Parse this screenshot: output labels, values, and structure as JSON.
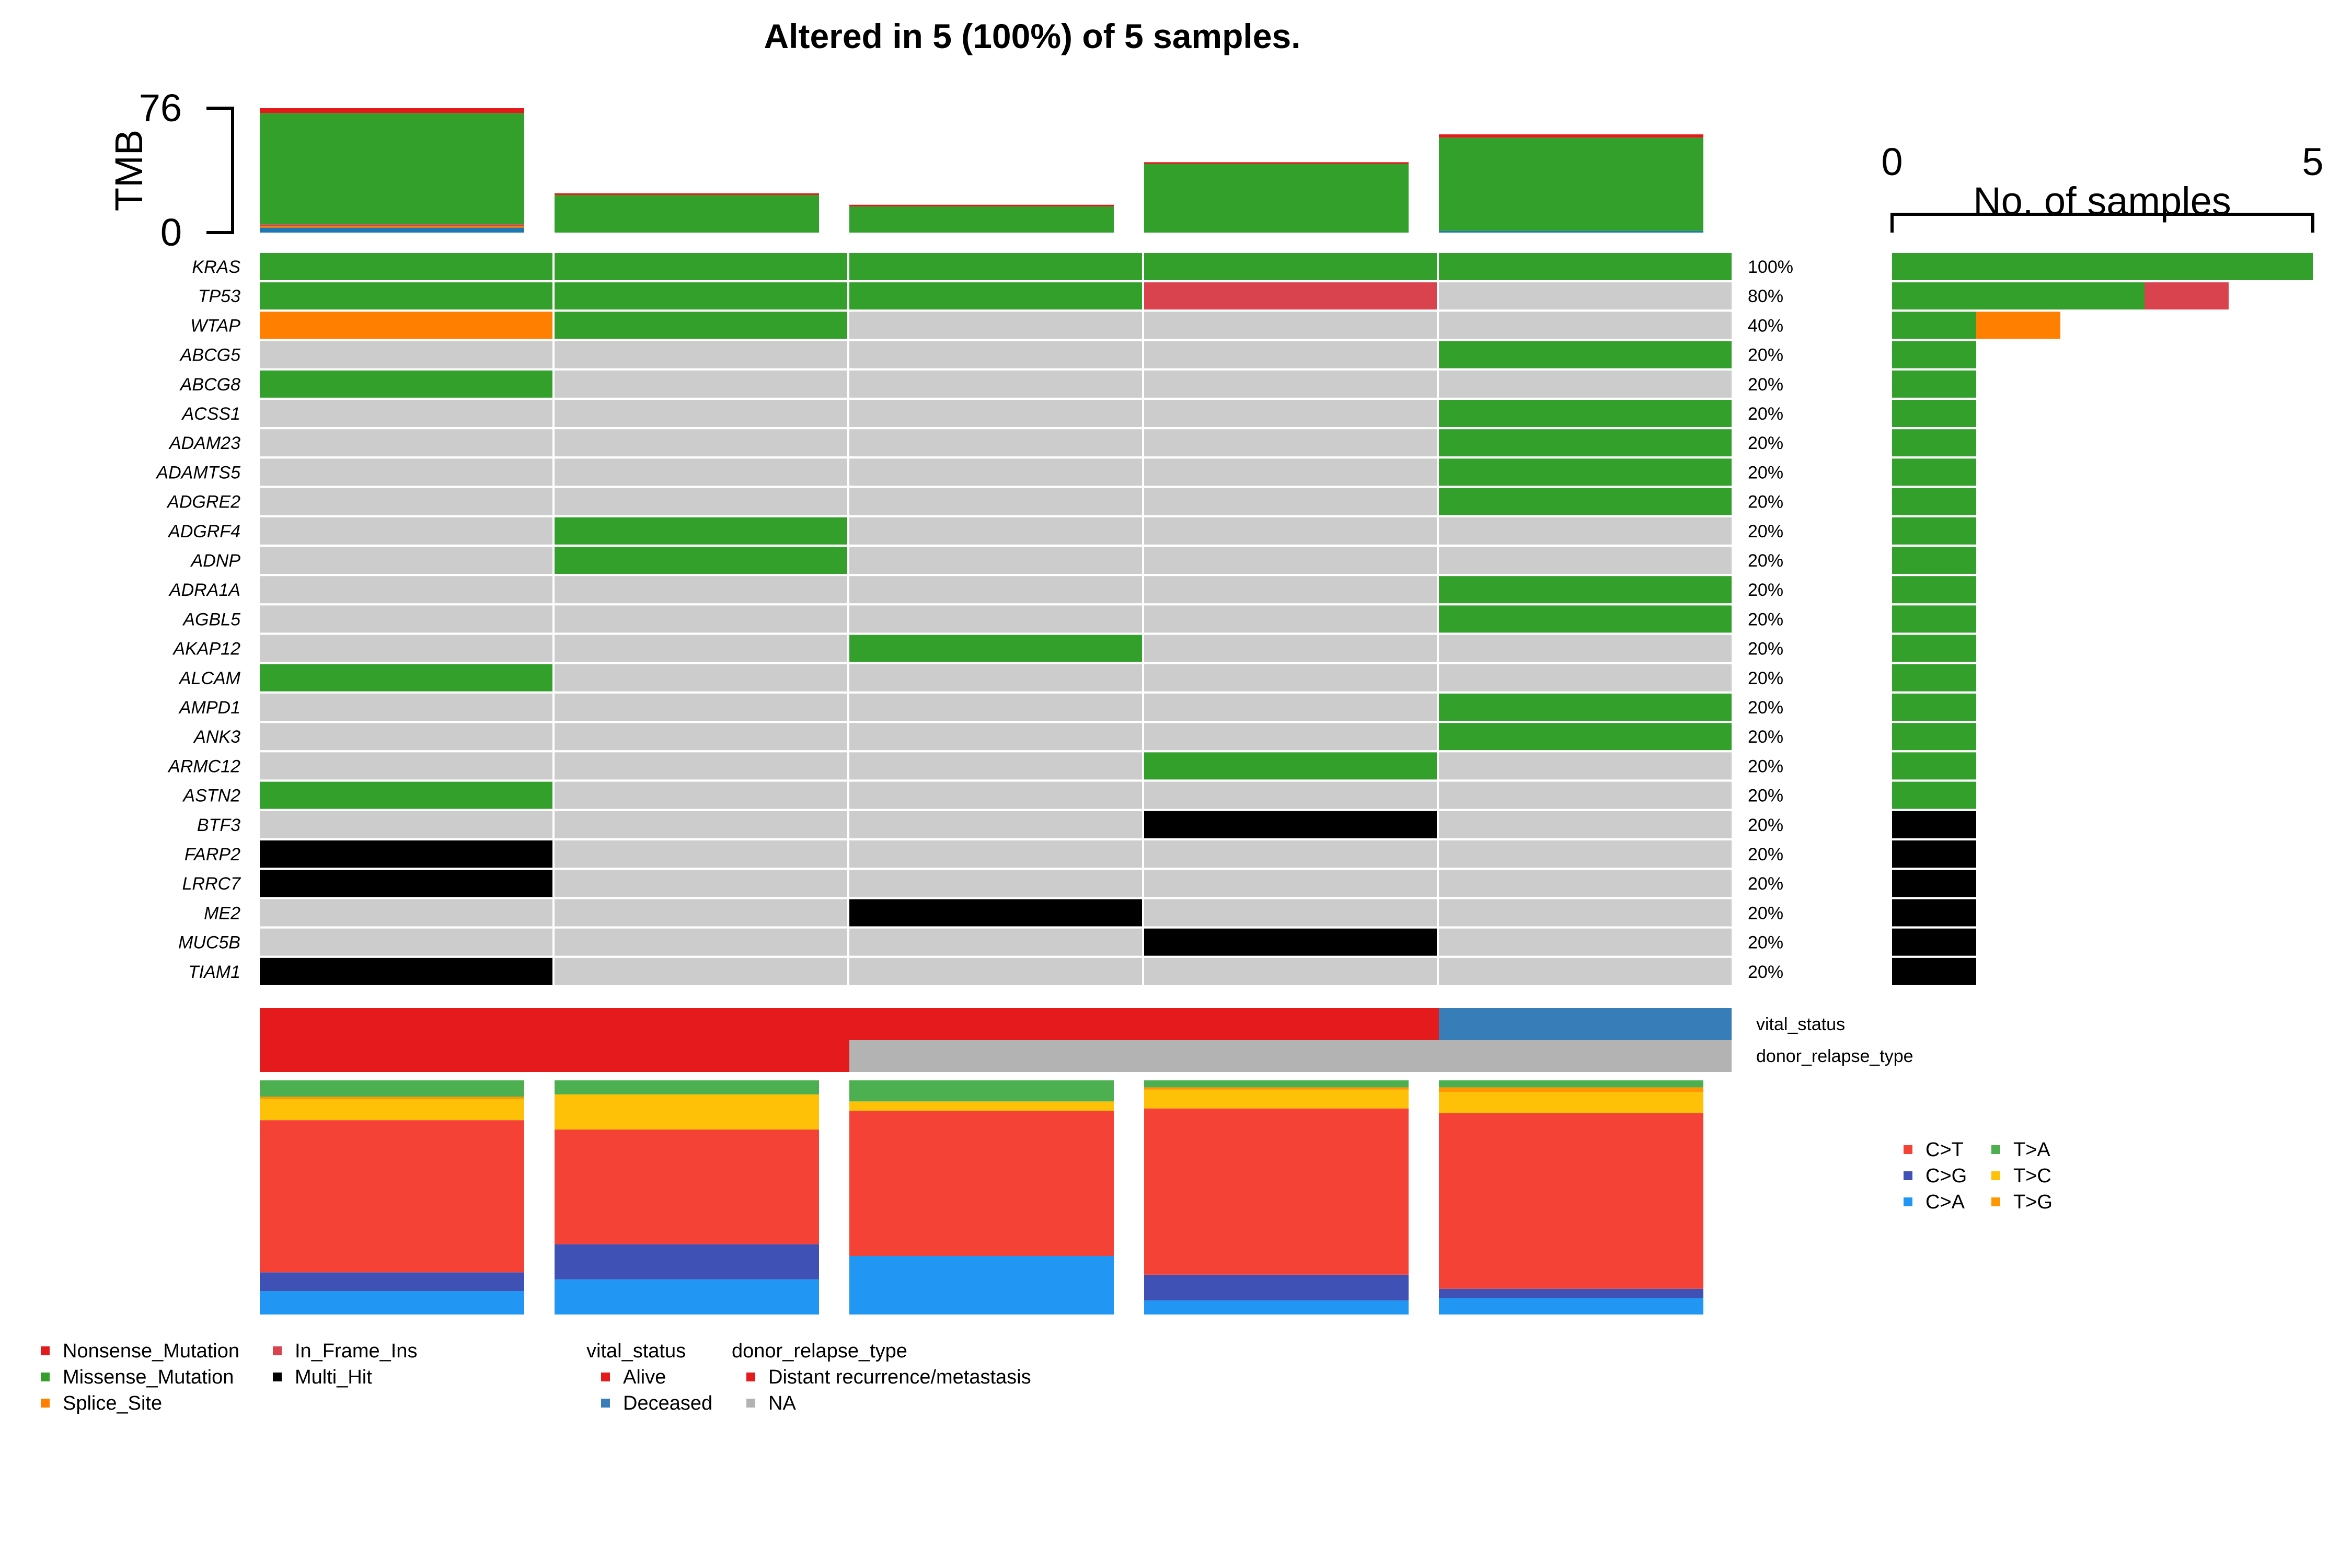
{
  "chart_data": {
    "type": "oncoplot",
    "title": "Altered in 5 (100%) of 5 samples.",
    "tmb_axis": {
      "label": "TMB",
      "range": [
        0,
        76
      ],
      "ticks": [
        "0",
        "76"
      ]
    },
    "samples_axis": {
      "label": "No. of samples",
      "range": [
        0,
        5
      ],
      "ticks": [
        "0",
        "5"
      ]
    },
    "n_samples": 5,
    "variant_colors": {
      "Nonsense_Mutation": "#E31A1C",
      "Missense_Mutation": "#33A02C",
      "Splice_Site": "#FF7F00",
      "In_Frame_Ins": "#D9434E",
      "Multi_Hit": "#000000",
      "None": "#CCCCCC"
    },
    "tmb": [
      {
        "sample": 1,
        "total": 76,
        "parts": {
          "Missense_Mutation": 68,
          "Nonsense_Mutation": 3,
          "Splice_Site": 1,
          "In_Frame_Ins": 1,
          "Other": 3
        }
      },
      {
        "sample": 2,
        "total": 24,
        "parts": {
          "Missense_Mutation": 23,
          "Nonsense_Mutation": 1
        }
      },
      {
        "sample": 3,
        "total": 17,
        "parts": {
          "Missense_Mutation": 16,
          "Nonsense_Mutation": 1
        }
      },
      {
        "sample": 4,
        "total": 43,
        "parts": {
          "Missense_Mutation": 42,
          "Nonsense_Mutation": 1
        }
      },
      {
        "sample": 5,
        "total": 60,
        "parts": {
          "Missense_Mutation": 57,
          "Nonsense_Mutation": 2,
          "Other": 1
        }
      }
    ],
    "genes": [
      {
        "name": "KRAS",
        "pct": "100%",
        "calls": [
          "Missense_Mutation",
          "Missense_Mutation",
          "Missense_Mutation",
          "Missense_Mutation",
          "Missense_Mutation"
        ],
        "counts": {
          "Missense_Mutation": 5
        }
      },
      {
        "name": "TP53",
        "pct": "80%",
        "calls": [
          "Missense_Mutation",
          "Missense_Mutation",
          "Missense_Mutation",
          "In_Frame_Ins",
          "None"
        ],
        "counts": {
          "Missense_Mutation": 3,
          "In_Frame_Ins": 1
        }
      },
      {
        "name": "WTAP",
        "pct": "40%",
        "calls": [
          "Splice_Site",
          "Missense_Mutation",
          "None",
          "None",
          "None"
        ],
        "counts": {
          "Missense_Mutation": 1,
          "Splice_Site": 1
        }
      },
      {
        "name": "ABCG5",
        "pct": "20%",
        "calls": [
          "None",
          "None",
          "None",
          "None",
          "Missense_Mutation"
        ],
        "counts": {
          "Missense_Mutation": 1
        }
      },
      {
        "name": "ABCG8",
        "pct": "20%",
        "calls": [
          "Missense_Mutation",
          "None",
          "None",
          "None",
          "None"
        ],
        "counts": {
          "Missense_Mutation": 1
        }
      },
      {
        "name": "ACSS1",
        "pct": "20%",
        "calls": [
          "None",
          "None",
          "None",
          "None",
          "Missense_Mutation"
        ],
        "counts": {
          "Missense_Mutation": 1
        }
      },
      {
        "name": "ADAM23",
        "pct": "20%",
        "calls": [
          "None",
          "None",
          "None",
          "None",
          "Missense_Mutation"
        ],
        "counts": {
          "Missense_Mutation": 1
        }
      },
      {
        "name": "ADAMTS5",
        "pct": "20%",
        "calls": [
          "None",
          "None",
          "None",
          "None",
          "Missense_Mutation"
        ],
        "counts": {
          "Missense_Mutation": 1
        }
      },
      {
        "name": "ADGRE2",
        "pct": "20%",
        "calls": [
          "None",
          "None",
          "None",
          "None",
          "Missense_Mutation"
        ],
        "counts": {
          "Missense_Mutation": 1
        }
      },
      {
        "name": "ADGRF4",
        "pct": "20%",
        "calls": [
          "None",
          "Missense_Mutation",
          "None",
          "None",
          "None"
        ],
        "counts": {
          "Missense_Mutation": 1
        }
      },
      {
        "name": "ADNP",
        "pct": "20%",
        "calls": [
          "None",
          "Missense_Mutation",
          "None",
          "None",
          "None"
        ],
        "counts": {
          "Missense_Mutation": 1
        }
      },
      {
        "name": "ADRA1A",
        "pct": "20%",
        "calls": [
          "None",
          "None",
          "None",
          "None",
          "Missense_Mutation"
        ],
        "counts": {
          "Missense_Mutation": 1
        }
      },
      {
        "name": "AGBL5",
        "pct": "20%",
        "calls": [
          "None",
          "None",
          "None",
          "None",
          "Missense_Mutation"
        ],
        "counts": {
          "Missense_Mutation": 1
        }
      },
      {
        "name": "AKAP12",
        "pct": "20%",
        "calls": [
          "None",
          "None",
          "Missense_Mutation",
          "None",
          "None"
        ],
        "counts": {
          "Missense_Mutation": 1
        }
      },
      {
        "name": "ALCAM",
        "pct": "20%",
        "calls": [
          "Missense_Mutation",
          "None",
          "None",
          "None",
          "None"
        ],
        "counts": {
          "Missense_Mutation": 1
        }
      },
      {
        "name": "AMPD1",
        "pct": "20%",
        "calls": [
          "None",
          "None",
          "None",
          "None",
          "Missense_Mutation"
        ],
        "counts": {
          "Missense_Mutation": 1
        }
      },
      {
        "name": "ANK3",
        "pct": "20%",
        "calls": [
          "None",
          "None",
          "None",
          "None",
          "Missense_Mutation"
        ],
        "counts": {
          "Missense_Mutation": 1
        }
      },
      {
        "name": "ARMC12",
        "pct": "20%",
        "calls": [
          "None",
          "None",
          "None",
          "Missense_Mutation",
          "None"
        ],
        "counts": {
          "Missense_Mutation": 1
        }
      },
      {
        "name": "ASTN2",
        "pct": "20%",
        "calls": [
          "Missense_Mutation",
          "None",
          "None",
          "None",
          "None"
        ],
        "counts": {
          "Missense_Mutation": 1
        }
      },
      {
        "name": "BTF3",
        "pct": "20%",
        "calls": [
          "None",
          "None",
          "None",
          "Multi_Hit",
          "None"
        ],
        "counts": {
          "Multi_Hit": 1
        }
      },
      {
        "name": "FARP2",
        "pct": "20%",
        "calls": [
          "Multi_Hit",
          "None",
          "None",
          "None",
          "None"
        ],
        "counts": {
          "Multi_Hit": 1
        }
      },
      {
        "name": "LRRC7",
        "pct": "20%",
        "calls": [
          "Multi_Hit",
          "None",
          "None",
          "None",
          "None"
        ],
        "counts": {
          "Multi_Hit": 1
        }
      },
      {
        "name": "ME2",
        "pct": "20%",
        "calls": [
          "None",
          "None",
          "Multi_Hit",
          "None",
          "None"
        ],
        "counts": {
          "Multi_Hit": 1
        }
      },
      {
        "name": "MUC5B",
        "pct": "20%",
        "calls": [
          "None",
          "None",
          "None",
          "Multi_Hit",
          "None"
        ],
        "counts": {
          "Multi_Hit": 1
        }
      },
      {
        "name": "TIAM1",
        "pct": "20%",
        "calls": [
          "Multi_Hit",
          "None",
          "None",
          "None",
          "None"
        ],
        "counts": {
          "Multi_Hit": 1
        }
      }
    ],
    "clinical": [
      {
        "name": "vital_status",
        "values": [
          "Alive",
          "Alive",
          "Alive",
          "Alive",
          "Deceased"
        ],
        "colors": {
          "Alive": "#E41A1C",
          "Deceased": "#377EB8"
        }
      },
      {
        "name": "donor_relapse_type",
        "values": [
          "Distant recurrence/metastasis",
          "Distant recurrence/metastasis",
          "NA",
          "NA",
          "NA"
        ],
        "colors": {
          "Distant recurrence/metastasis": "#E41A1C",
          "NA": "#B3B3B3"
        }
      }
    ],
    "titv_colors": {
      "C>T": "#F44336",
      "C>G": "#3F51B5",
      "C>A": "#2196F3",
      "T>A": "#4CAF50",
      "T>C": "#FFC107",
      "T>G": "#FF9800"
    },
    "titv_stack_order": [
      "C>A",
      "C>G",
      "C>T",
      "T>C",
      "T>G",
      "T>A"
    ],
    "titv": [
      {
        "C>A": 10,
        "C>G": 8,
        "C>T": 65,
        "T>C": 9,
        "T>G": 1,
        "T>A": 7
      },
      {
        "C>A": 15,
        "C>G": 15,
        "C>T": 49,
        "T>C": 15,
        "T>G": 0,
        "T>A": 6
      },
      {
        "C>A": 25,
        "C>G": 0,
        "C>T": 62,
        "T>C": 4,
        "T>G": 0,
        "T>A": 9
      },
      {
        "C>A": 6,
        "C>G": 11,
        "C>T": 71,
        "T>C": 8,
        "T>G": 1,
        "T>A": 3
      },
      {
        "C>A": 7,
        "C>G": 4,
        "C>T": 75,
        "T>C": 9,
        "T>G": 2,
        "T>A": 3
      }
    ],
    "legend_variant": [
      [
        "Nonsense_Mutation",
        "Missense_Mutation",
        "Splice_Site"
      ],
      [
        "In_Frame_Ins",
        "Multi_Hit"
      ]
    ],
    "legend_clinical": [
      {
        "title": "vital_status",
        "items": [
          "Alive",
          "Deceased"
        ]
      },
      {
        "title": "donor_relapse_type",
        "items": [
          "Distant recurrence/metastasis",
          "NA"
        ]
      }
    ],
    "legend_titv": [
      [
        "C>T",
        "C>G",
        "C>A"
      ],
      [
        "T>A",
        "T>C",
        "T>G"
      ]
    ]
  }
}
